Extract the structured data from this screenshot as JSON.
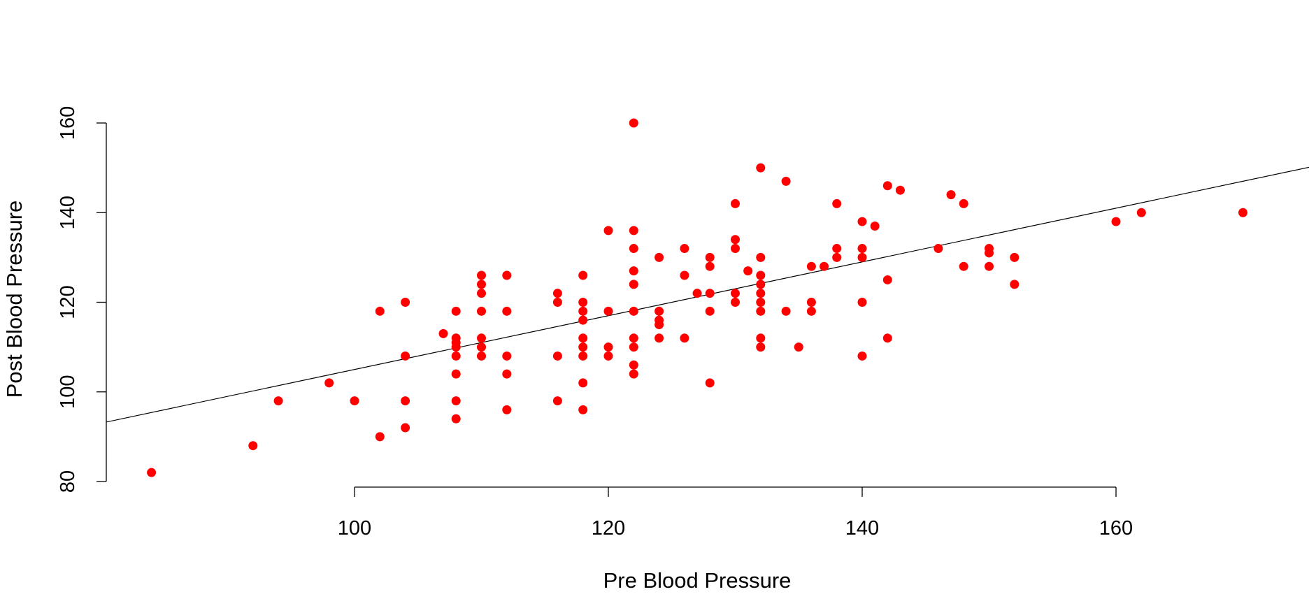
{
  "chart_data": {
    "type": "scatter",
    "xlabel": "Pre Blood Pressure",
    "ylabel": "Post Blood Pressure",
    "xlim": [
      80,
      174
    ],
    "ylim": [
      80,
      160
    ],
    "x_ticks": [
      100,
      120,
      140,
      160
    ],
    "y_ticks": [
      80,
      100,
      120,
      140,
      160
    ],
    "grid": false,
    "point_color": "#ff0000",
    "line_color": "#000000",
    "fit_line": {
      "intercept": 45.0,
      "slope": 0.6
    },
    "series": [
      {
        "points": [
          [
            84,
            82
          ],
          [
            92,
            88
          ],
          [
            94,
            98
          ],
          [
            98,
            102
          ],
          [
            100,
            98
          ],
          [
            102,
            118
          ],
          [
            102,
            90
          ],
          [
            104,
            120
          ],
          [
            104,
            108
          ],
          [
            104,
            98
          ],
          [
            104,
            92
          ],
          [
            107,
            113
          ],
          [
            108,
            118
          ],
          [
            108,
            112
          ],
          [
            108,
            111
          ],
          [
            108,
            110
          ],
          [
            108,
            108
          ],
          [
            108,
            104
          ],
          [
            108,
            98
          ],
          [
            108,
            94
          ],
          [
            110,
            126
          ],
          [
            110,
            124
          ],
          [
            110,
            122
          ],
          [
            110,
            118
          ],
          [
            110,
            112
          ],
          [
            110,
            110
          ],
          [
            110,
            108
          ],
          [
            112,
            126
          ],
          [
            112,
            118
          ],
          [
            112,
            108
          ],
          [
            112,
            104
          ],
          [
            112,
            96
          ],
          [
            116,
            122
          ],
          [
            116,
            120
          ],
          [
            116,
            108
          ],
          [
            116,
            98
          ],
          [
            118,
            126
          ],
          [
            118,
            120
          ],
          [
            118,
            118
          ],
          [
            118,
            116
          ],
          [
            118,
            112
          ],
          [
            118,
            110
          ],
          [
            118,
            108
          ],
          [
            118,
            102
          ],
          [
            118,
            96
          ],
          [
            120,
            136
          ],
          [
            120,
            118
          ],
          [
            120,
            110
          ],
          [
            120,
            108
          ],
          [
            122,
            160
          ],
          [
            122,
            136
          ],
          [
            122,
            132
          ],
          [
            122,
            127
          ],
          [
            122,
            124
          ],
          [
            122,
            118
          ],
          [
            122,
            112
          ],
          [
            122,
            110
          ],
          [
            122,
            106
          ],
          [
            122,
            104
          ],
          [
            124,
            130
          ],
          [
            124,
            118
          ],
          [
            124,
            116
          ],
          [
            124,
            115
          ],
          [
            124,
            112
          ],
          [
            126,
            132
          ],
          [
            126,
            126
          ],
          [
            126,
            112
          ],
          [
            127,
            122
          ],
          [
            128,
            130
          ],
          [
            128,
            128
          ],
          [
            128,
            122
          ],
          [
            128,
            118
          ],
          [
            128,
            102
          ],
          [
            130,
            142
          ],
          [
            130,
            134
          ],
          [
            130,
            132
          ],
          [
            130,
            122
          ],
          [
            130,
            120
          ],
          [
            131,
            127
          ],
          [
            132,
            150
          ],
          [
            132,
            130
          ],
          [
            132,
            126
          ],
          [
            132,
            124
          ],
          [
            132,
            122
          ],
          [
            132,
            120
          ],
          [
            132,
            118
          ],
          [
            132,
            112
          ],
          [
            132,
            110
          ],
          [
            134,
            147
          ],
          [
            134,
            118
          ],
          [
            135,
            110
          ],
          [
            136,
            128
          ],
          [
            136,
            120
          ],
          [
            136,
            118
          ],
          [
            137,
            128
          ],
          [
            138,
            142
          ],
          [
            138,
            132
          ],
          [
            138,
            130
          ],
          [
            140,
            138
          ],
          [
            140,
            132
          ],
          [
            140,
            130
          ],
          [
            140,
            120
          ],
          [
            140,
            108
          ],
          [
            141,
            137
          ],
          [
            142,
            146
          ],
          [
            142,
            125
          ],
          [
            142,
            112
          ],
          [
            143,
            145
          ],
          [
            146,
            132
          ],
          [
            147,
            144
          ],
          [
            148,
            142
          ],
          [
            148,
            128
          ],
          [
            150,
            132
          ],
          [
            150,
            131
          ],
          [
            150,
            128
          ],
          [
            152,
            130
          ],
          [
            152,
            124
          ],
          [
            160,
            138
          ],
          [
            162,
            140
          ],
          [
            170,
            140
          ]
        ]
      }
    ]
  }
}
